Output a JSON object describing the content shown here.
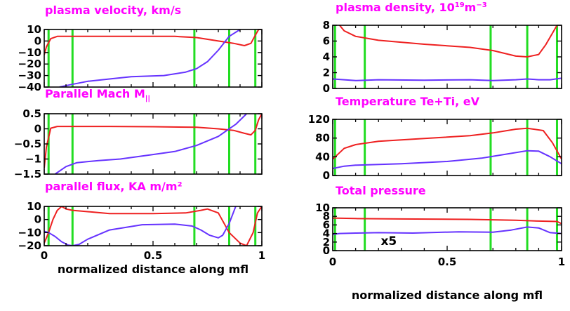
{
  "chart_data": [
    {
      "type": "line",
      "title": "plasma velocity, km/s",
      "xlim": [
        0,
        1
      ],
      "ylim": [
        -40,
        10
      ],
      "yticks": [
        10,
        0,
        -10,
        -20,
        -30,
        -40
      ],
      "ytick_labels": [
        "10",
        "0",
        "−10",
        "−20",
        "−30",
        "−40"
      ],
      "xticks": [],
      "xtick_labels": [],
      "xlabel": "",
      "vlines": [
        0.02,
        0.13,
        0.69,
        0.85,
        0.97
      ],
      "series": [
        {
          "color": "#ee2020",
          "x": [
            0.0,
            0.01,
            0.03,
            0.06,
            0.1,
            0.2,
            0.4,
            0.6,
            0.7,
            0.8,
            0.87,
            0.92,
            0.95,
            0.97,
            0.985,
            1.0
          ],
          "y": [
            -12,
            -5,
            2,
            4,
            4,
            4,
            4,
            4,
            3,
            0,
            -2,
            -4,
            -2,
            5,
            10,
            10
          ]
        },
        {
          "color": "#6633ff",
          "x": [
            0.07,
            0.12,
            0.2,
            0.3,
            0.4,
            0.55,
            0.65,
            0.7,
            0.75,
            0.8,
            0.85,
            0.9
          ],
          "y": [
            -40,
            -38,
            -35,
            -33,
            -31,
            -30,
            -27,
            -24,
            -18,
            -8,
            4,
            10
          ]
        }
      ]
    },
    {
      "type": "line",
      "title": "Parallel Mach M",
      "title_sub": "||",
      "xlim": [
        0,
        1
      ],
      "ylim": [
        -1.5,
        0.5
      ],
      "yticks": [
        0.5,
        0,
        -0.5,
        -1,
        -1.5
      ],
      "ytick_labels": [
        "0.5",
        "0",
        "−0.5",
        "−1",
        "−1.5"
      ],
      "xticks": [],
      "xtick_labels": [],
      "xlabel": "",
      "vlines": [
        0.02,
        0.13,
        0.69,
        0.85,
        0.97
      ],
      "series": [
        {
          "color": "#ee2020",
          "x": [
            0.0,
            0.01,
            0.03,
            0.06,
            0.1,
            0.3,
            0.5,
            0.7,
            0.8,
            0.87,
            0.92,
            0.95,
            0.97,
            0.985,
            1.0
          ],
          "y": [
            -1.3,
            -0.6,
            0.02,
            0.08,
            0.08,
            0.08,
            0.07,
            0.05,
            0.0,
            -0.05,
            -0.15,
            -0.2,
            -0.05,
            0.3,
            0.5
          ]
        },
        {
          "color": "#6633ff",
          "x": [
            0.05,
            0.1,
            0.15,
            0.25,
            0.35,
            0.5,
            0.6,
            0.7,
            0.8,
            0.88,
            0.93
          ],
          "y": [
            -1.5,
            -1.25,
            -1.12,
            -1.05,
            -1.0,
            -0.85,
            -0.75,
            -0.55,
            -0.25,
            0.15,
            0.5
          ]
        }
      ]
    },
    {
      "type": "line",
      "title": "parallel flux, KA m/m²",
      "xlim": [
        0,
        1
      ],
      "ylim": [
        -20,
        10
      ],
      "yticks": [
        10,
        0,
        -10,
        -20
      ],
      "ytick_labels": [
        "10",
        "0",
        "−10",
        "−20"
      ],
      "xticks": [
        0,
        0.5,
        1
      ],
      "xtick_labels": [
        "0",
        "0.5",
        "1"
      ],
      "xlabel": "normalized distance along mfl",
      "vlines": [
        0.02,
        0.13,
        0.69,
        0.85,
        0.97
      ],
      "series": [
        {
          "color": "#ee2020",
          "x": [
            0.0,
            0.02,
            0.04,
            0.06,
            0.08,
            0.1,
            0.13,
            0.2,
            0.3,
            0.5,
            0.65,
            0.72,
            0.75,
            0.8,
            0.85,
            0.9,
            0.93,
            0.96,
            0.98,
            1.0
          ],
          "y": [
            -18,
            -10,
            0,
            7,
            10,
            8,
            7,
            6,
            4.5,
            4.5,
            5,
            7,
            8,
            5,
            -10,
            -18,
            -20,
            -10,
            5,
            10
          ]
        },
        {
          "color": "#6633ff",
          "x": [
            0.0,
            0.02,
            0.05,
            0.08,
            0.11,
            0.13,
            0.16,
            0.2,
            0.3,
            0.45,
            0.6,
            0.68,
            0.72,
            0.76,
            0.8,
            0.82,
            0.85,
            0.88
          ],
          "y": [
            -9,
            -10,
            -13,
            -17,
            -19.5,
            -20,
            -19,
            -15,
            -8,
            -4,
            -3.5,
            -5,
            -8,
            -12,
            -14,
            -12,
            -3,
            10
          ]
        }
      ]
    },
    {
      "type": "line",
      "title": "plasma density, 10",
      "title_sup": "19",
      "title_tail": "m",
      "title_tail_sup": "−3",
      "xlim": [
        0,
        1
      ],
      "ylim": [
        0,
        8
      ],
      "yticks": [
        8,
        6,
        4,
        2,
        0
      ],
      "ytick_labels": [
        "8",
        "6",
        "4",
        "2",
        "0"
      ],
      "xticks": [],
      "xtick_labels": [],
      "xlabel": "",
      "vlines": [
        0.01,
        0.14,
        0.69,
        0.85,
        0.98
      ],
      "series": [
        {
          "color": "#ee2020",
          "x": [
            0.03,
            0.05,
            0.1,
            0.2,
            0.4,
            0.6,
            0.7,
            0.8,
            0.85,
            0.9,
            0.93,
            0.96,
            0.98
          ],
          "y": [
            8,
            7.3,
            6.6,
            6.1,
            5.6,
            5.2,
            4.8,
            4.1,
            4.0,
            4.3,
            5.5,
            7,
            8
          ]
        },
        {
          "color": "#6633ff",
          "x": [
            0.0,
            0.1,
            0.2,
            0.4,
            0.6,
            0.7,
            0.8,
            0.85,
            0.9,
            0.95,
            1.0
          ],
          "y": [
            1.2,
            1.0,
            1.1,
            1.05,
            1.1,
            1.0,
            1.1,
            1.2,
            1.1,
            1.1,
            1.3
          ]
        }
      ]
    },
    {
      "type": "line",
      "title": "Temperature Te+Ti, eV",
      "xlim": [
        0,
        1
      ],
      "ylim": [
        0,
        120
      ],
      "yticks": [
        120,
        80,
        40,
        0
      ],
      "ytick_labels": [
        "120",
        "80",
        "40",
        "0"
      ],
      "xticks": [],
      "xtick_labels": [],
      "xlabel": "",
      "vlines": [
        0.01,
        0.14,
        0.69,
        0.85,
        0.98
      ],
      "series": [
        {
          "color": "#ee2020",
          "x": [
            0.0,
            0.05,
            0.1,
            0.2,
            0.4,
            0.6,
            0.7,
            0.8,
            0.85,
            0.92,
            0.96,
            1.0
          ],
          "y": [
            35,
            58,
            66,
            73,
            79,
            85,
            91,
            99,
            101,
            96,
            70,
            35
          ]
        },
        {
          "color": "#6633ff",
          "x": [
            0.0,
            0.05,
            0.1,
            0.3,
            0.5,
            0.65,
            0.75,
            0.85,
            0.9,
            0.95,
            1.0
          ],
          "y": [
            15,
            20,
            22,
            25,
            30,
            37,
            45,
            53,
            52,
            40,
            25
          ]
        }
      ]
    },
    {
      "type": "line",
      "title": "Total pressure",
      "xlim": [
        0,
        1
      ],
      "ylim": [
        0,
        10
      ],
      "yticks": [
        10,
        8,
        6,
        4,
        2,
        0
      ],
      "ytick_labels": [
        "10",
        "8",
        "6",
        "4",
        "2",
        "0"
      ],
      "xticks": [
        0,
        0.5,
        1
      ],
      "xtick_labels": [
        "0",
        "0.5",
        "1"
      ],
      "xlabel": "normalized distance along mfl",
      "vlines": [
        0.01,
        0.14,
        0.69,
        0.85,
        0.98
      ],
      "annotation": "x5",
      "series": [
        {
          "color": "#ee2020",
          "x": [
            0.0,
            0.1,
            0.3,
            0.6,
            0.8,
            0.9,
            0.98,
            1.0
          ],
          "y": [
            7.6,
            7.5,
            7.4,
            7.3,
            7.1,
            6.9,
            6.8,
            6.3
          ]
        },
        {
          "color": "#6633ff",
          "x": [
            0.0,
            0.03,
            0.1,
            0.2,
            0.35,
            0.55,
            0.7,
            0.78,
            0.85,
            0.9,
            0.95,
            1.0
          ],
          "y": [
            3.8,
            4.0,
            4.1,
            4.2,
            4.1,
            4.4,
            4.3,
            4.8,
            5.5,
            5.3,
            4.2,
            4.0
          ]
        }
      ]
    }
  ],
  "styles": {
    "green": "#22dd22",
    "axis": "#000000"
  }
}
